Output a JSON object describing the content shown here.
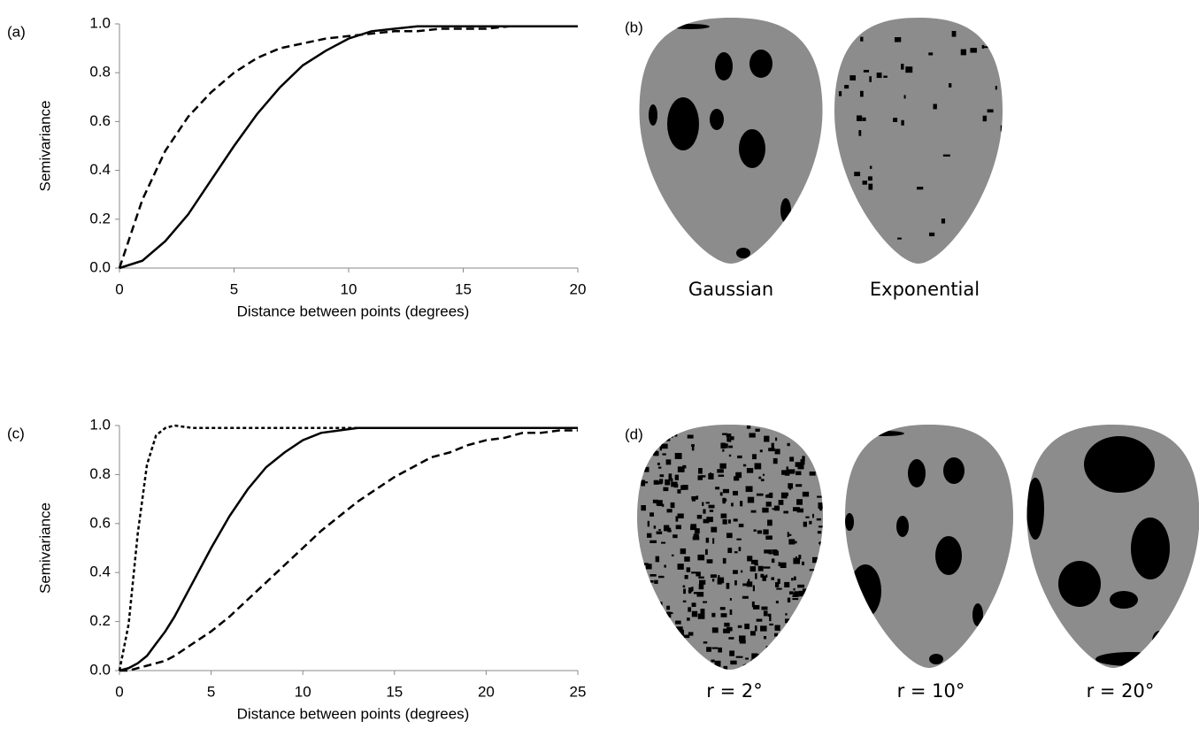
{
  "chart_data": [
    {
      "type": "line",
      "label": "(a)",
      "x_label": "Distance between points (degrees)",
      "y_label": "Semivariance",
      "x": [
        0,
        1,
        2,
        3,
        4,
        5,
        6,
        7,
        8,
        9,
        10,
        11,
        12,
        13,
        14,
        15,
        16,
        17,
        18,
        19,
        20
      ],
      "series": [
        {
          "color": "#000000",
          "dash": "solid",
          "values": [
            0,
            0.03,
            0.11,
            0.22,
            0.36,
            0.5,
            0.63,
            0.74,
            0.83,
            0.89,
            0.94,
            0.97,
            0.98,
            0.99,
            0.99,
            0.99,
            0.99,
            0.99,
            0.99,
            0.99,
            0.99
          ]
        },
        {
          "color": "#000000",
          "dash": "dashed",
          "values": [
            0,
            0.28,
            0.48,
            0.62,
            0.72,
            0.8,
            0.86,
            0.9,
            0.92,
            0.94,
            0.95,
            0.96,
            0.97,
            0.97,
            0.98,
            0.98,
            0.98,
            0.99,
            0.99,
            0.99,
            0.99
          ]
        }
      ],
      "xlim": [
        0,
        20
      ],
      "xticks": [
        0,
        5,
        10,
        15,
        20
      ],
      "ylim": [
        0,
        1
      ],
      "yticks": [
        {
          "value": 0,
          "label": "0.0"
        },
        {
          "value": 0.2,
          "label": "0.2"
        },
        {
          "value": 0.4,
          "label": "0.4"
        },
        {
          "value": 0.6,
          "label": "0.6"
        },
        {
          "value": 0.8,
          "label": "0.8"
        },
        {
          "value": 1,
          "label": "1.0"
        }
      ]
    },
    {
      "type": "line",
      "label": "(c)",
      "x_label": "Distance between points (degrees)",
      "y_label": "Semivariance",
      "x": [
        0,
        0.5,
        1,
        1.5,
        2,
        2.5,
        3,
        4,
        5,
        6,
        7,
        8,
        9,
        10,
        11,
        12,
        13,
        14,
        15,
        16,
        17,
        18,
        19,
        20,
        21,
        22,
        23,
        24,
        25
      ],
      "series": [
        {
          "color": "#000000",
          "dash": "short-dashed",
          "values": [
            0,
            0.19,
            0.56,
            0.84,
            0.96,
            0.99,
            1,
            0.99,
            0.99,
            0.99,
            0.99,
            0.99,
            0.99,
            0.99,
            0.99,
            0.99,
            0.99,
            0.99,
            0.99,
            0.99,
            0.99,
            0.99,
            0.99,
            0.99,
            0.99,
            0.99,
            0.99,
            0.99,
            0.99
          ]
        },
        {
          "color": "#000000",
          "dash": "solid",
          "values": [
            0,
            0.01,
            0.03,
            0.06,
            0.11,
            0.16,
            0.22,
            0.36,
            0.5,
            0.63,
            0.74,
            0.83,
            0.89,
            0.94,
            0.97,
            0.98,
            0.99,
            0.99,
            0.99,
            0.99,
            0.99,
            0.99,
            0.99,
            0.99,
            0.99,
            0.99,
            0.99,
            0.99,
            0.99
          ]
        },
        {
          "color": "#000000",
          "dash": "dashed",
          "values": [
            0,
            0,
            0.01,
            0.02,
            0.03,
            0.04,
            0.06,
            0.11,
            0.16,
            0.22,
            0.29,
            0.36,
            0.43,
            0.5,
            0.57,
            0.63,
            0.69,
            0.74,
            0.79,
            0.83,
            0.87,
            0.89,
            0.92,
            0.94,
            0.95,
            0.97,
            0.97,
            0.98,
            0.98
          ]
        }
      ],
      "xlim": [
        0,
        25
      ],
      "xticks": [
        0,
        5,
        10,
        15,
        20,
        25
      ],
      "ylim": [
        0,
        1
      ],
      "yticks": [
        {
          "value": 0,
          "label": "0.0"
        },
        {
          "value": 0.2,
          "label": "0.2"
        },
        {
          "value": 0.4,
          "label": "0.4"
        },
        {
          "value": 0.6,
          "label": "0.6"
        },
        {
          "value": 0.8,
          "label": "0.8"
        },
        {
          "value": 1,
          "label": "1.0"
        }
      ]
    }
  ],
  "panels": {
    "b": {
      "label": "(b)",
      "captions": [
        "Gaussian",
        "Exponential"
      ]
    },
    "d": {
      "label": "(d)",
      "captions": [
        "r = 2°",
        "r = 10°",
        "r = 20°"
      ]
    }
  }
}
